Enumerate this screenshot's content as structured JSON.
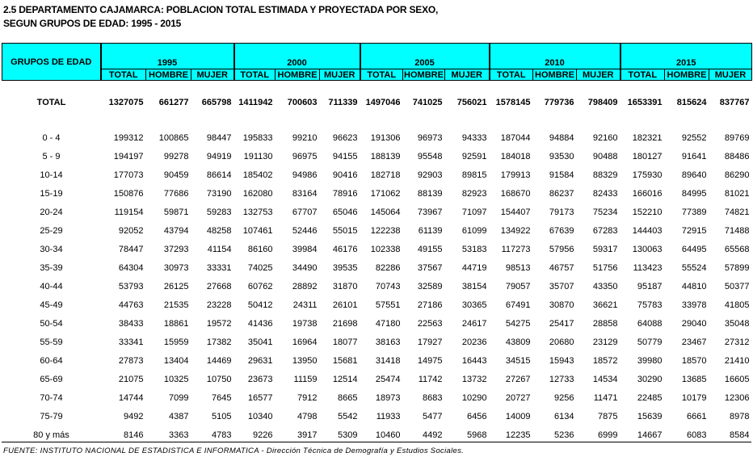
{
  "title": {
    "line1": "2.5  DEPARTAMENTO CAJAMARCA: POBLACION TOTAL ESTIMADA Y PROYECTADA POR SEXO,",
    "line2": "SEGUN GRUPOS DE EDAD: 1995 - 2015"
  },
  "table": {
    "group_header": "GRUPOS DE EDAD",
    "years": [
      "1995",
      "2000",
      "2005",
      "2010",
      "2015"
    ],
    "sub_headers": [
      "TOTAL",
      "HOMBRE",
      "MUJER"
    ],
    "total_row": {
      "group": "TOTAL",
      "values": [
        "1327075",
        "661277",
        "665798",
        "1411942",
        "700603",
        "711339",
        "1497046",
        "741025",
        "756021",
        "1578145",
        "779736",
        "798409",
        "1653391",
        "815624",
        "837767"
      ]
    },
    "rows": [
      {
        "group": "0 - 4",
        "values": [
          "199312",
          "100865",
          "98447",
          "195833",
          "99210",
          "96623",
          "191306",
          "96973",
          "94333",
          "187044",
          "94884",
          "92160",
          "182321",
          "92552",
          "89769"
        ]
      },
      {
        "group": "5 - 9",
        "values": [
          "194197",
          "99278",
          "94919",
          "191130",
          "96975",
          "94155",
          "188139",
          "95548",
          "92591",
          "184018",
          "93530",
          "90488",
          "180127",
          "91641",
          "88486"
        ]
      },
      {
        "group": "10-14",
        "values": [
          "177073",
          "90459",
          "86614",
          "185402",
          "94986",
          "90416",
          "182718",
          "92903",
          "89815",
          "179913",
          "91584",
          "88329",
          "175930",
          "89640",
          "86290"
        ]
      },
      {
        "group": "15-19",
        "values": [
          "150876",
          "77686",
          "73190",
          "162080",
          "83164",
          "78916",
          "171062",
          "88139",
          "82923",
          "168670",
          "86237",
          "82433",
          "166016",
          "84995",
          "81021"
        ]
      },
      {
        "group": "20-24",
        "values": [
          "119154",
          "59871",
          "59283",
          "132753",
          "67707",
          "65046",
          "145064",
          "73967",
          "71097",
          "154407",
          "79173",
          "75234",
          "152210",
          "77389",
          "74821"
        ]
      },
      {
        "group": "25-29",
        "values": [
          "92052",
          "43794",
          "48258",
          "107461",
          "52446",
          "55015",
          "122238",
          "61139",
          "61099",
          "134922",
          "67639",
          "67283",
          "144403",
          "72915",
          "71488"
        ]
      },
      {
        "group": "30-34",
        "values": [
          "78447",
          "37293",
          "41154",
          "86160",
          "39984",
          "46176",
          "102338",
          "49155",
          "53183",
          "117273",
          "57956",
          "59317",
          "130063",
          "64495",
          "65568"
        ]
      },
      {
        "group": "35-39",
        "values": [
          "64304",
          "30973",
          "33331",
          "74025",
          "34490",
          "39535",
          "82286",
          "37567",
          "44719",
          "98513",
          "46757",
          "51756",
          "113423",
          "55524",
          "57899"
        ]
      },
      {
        "group": "40-44",
        "values": [
          "53793",
          "26125",
          "27668",
          "60762",
          "28892",
          "31870",
          "70743",
          "32589",
          "38154",
          "79057",
          "35707",
          "43350",
          "95187",
          "44810",
          "50377"
        ]
      },
      {
        "group": "45-49",
        "values": [
          "44763",
          "21535",
          "23228",
          "50412",
          "24311",
          "26101",
          "57551",
          "27186",
          "30365",
          "67491",
          "30870",
          "36621",
          "75783",
          "33978",
          "41805"
        ]
      },
      {
        "group": "50-54",
        "values": [
          "38433",
          "18861",
          "19572",
          "41436",
          "19738",
          "21698",
          "47180",
          "22563",
          "24617",
          "54275",
          "25417",
          "28858",
          "64088",
          "29040",
          "35048"
        ]
      },
      {
        "group": "55-59",
        "values": [
          "33341",
          "15959",
          "17382",
          "35041",
          "16964",
          "18077",
          "38163",
          "17927",
          "20236",
          "43809",
          "20680",
          "23129",
          "50779",
          "23467",
          "27312"
        ]
      },
      {
        "group": "60-64",
        "values": [
          "27873",
          "13404",
          "14469",
          "29631",
          "13950",
          "15681",
          "31418",
          "14975",
          "16443",
          "34515",
          "15943",
          "18572",
          "39980",
          "18570",
          "21410"
        ]
      },
      {
        "group": "65-69",
        "values": [
          "21075",
          "10325",
          "10750",
          "23673",
          "11159",
          "12514",
          "25474",
          "11742",
          "13732",
          "27267",
          "12733",
          "14534",
          "30290",
          "13685",
          "16605"
        ]
      },
      {
        "group": "70-74",
        "values": [
          "14744",
          "7099",
          "7645",
          "16577",
          "7912",
          "8665",
          "18973",
          "8683",
          "10290",
          "20727",
          "9256",
          "11471",
          "22485",
          "10179",
          "12306"
        ]
      },
      {
        "group": "75-79",
        "values": [
          "9492",
          "4387",
          "5105",
          "10340",
          "4798",
          "5542",
          "11933",
          "5477",
          "6456",
          "14009",
          "6134",
          "7875",
          "15639",
          "6661",
          "8978"
        ]
      },
      {
        "group": "80 y más",
        "values": [
          "8146",
          "3363",
          "4783",
          "9226",
          "3917",
          "5309",
          "10460",
          "4492",
          "5968",
          "12235",
          "5236",
          "6999",
          "14667",
          "6083",
          "8584"
        ]
      }
    ]
  },
  "footer": "FUENTE: INSTITUTO NACIONAL DE ESTADISTICA E INFORMATICA - Dirección Técnica de Demografía y Estudios Sociales.",
  "colors": {
    "header_bg": "#00ffff"
  }
}
